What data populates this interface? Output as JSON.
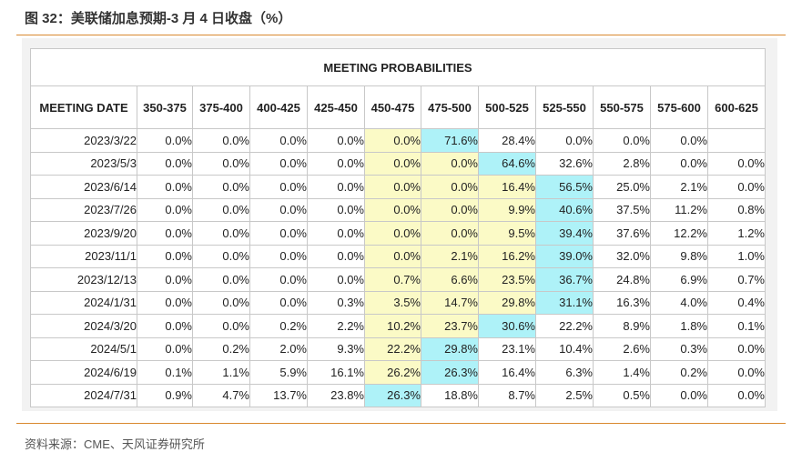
{
  "figure": {
    "title": "图 32：美联储加息预期-3 月 4 日收盘（%）",
    "source": "资料来源：CME、天风证券研究所"
  },
  "table": {
    "caption": "MEETING PROBABILITIES",
    "columns": [
      "MEETING DATE",
      "350-375",
      "375-400",
      "400-425",
      "425-450",
      "450-475",
      "475-500",
      "500-525",
      "525-550",
      "550-575",
      "575-600",
      "600-625"
    ],
    "rows": [
      {
        "date": "2023/3/22",
        "values": [
          "0.0%",
          "0.0%",
          "0.0%",
          "0.0%",
          "0.0%",
          "71.6%",
          "28.4%",
          "0.0%",
          "0.0%",
          "0.0%",
          ""
        ],
        "highlight": [
          null,
          null,
          null,
          null,
          "yellow",
          "cyan",
          null,
          null,
          null,
          null,
          null
        ]
      },
      {
        "date": "2023/5/3",
        "values": [
          "0.0%",
          "0.0%",
          "0.0%",
          "0.0%",
          "0.0%",
          "0.0%",
          "64.6%",
          "32.6%",
          "2.8%",
          "0.0%",
          "0.0%"
        ],
        "highlight": [
          null,
          null,
          null,
          null,
          "yellow",
          "yellow",
          "cyan",
          null,
          null,
          null,
          null
        ]
      },
      {
        "date": "2023/6/14",
        "values": [
          "0.0%",
          "0.0%",
          "0.0%",
          "0.0%",
          "0.0%",
          "0.0%",
          "16.4%",
          "56.5%",
          "25.0%",
          "2.1%",
          "0.0%"
        ],
        "highlight": [
          null,
          null,
          null,
          null,
          "yellow",
          "yellow",
          "yellow",
          "cyan",
          null,
          null,
          null
        ]
      },
      {
        "date": "2023/7/26",
        "values": [
          "0.0%",
          "0.0%",
          "0.0%",
          "0.0%",
          "0.0%",
          "0.0%",
          "9.9%",
          "40.6%",
          "37.5%",
          "11.2%",
          "0.8%"
        ],
        "highlight": [
          null,
          null,
          null,
          null,
          "yellow",
          "yellow",
          "yellow",
          "cyan",
          null,
          null,
          null
        ]
      },
      {
        "date": "2023/9/20",
        "values": [
          "0.0%",
          "0.0%",
          "0.0%",
          "0.0%",
          "0.0%",
          "0.0%",
          "9.5%",
          "39.4%",
          "37.6%",
          "12.2%",
          "1.2%"
        ],
        "highlight": [
          null,
          null,
          null,
          null,
          "yellow",
          "yellow",
          "yellow",
          "cyan",
          null,
          null,
          null
        ]
      },
      {
        "date": "2023/11/1",
        "values": [
          "0.0%",
          "0.0%",
          "0.0%",
          "0.0%",
          "0.0%",
          "2.1%",
          "16.2%",
          "39.0%",
          "32.0%",
          "9.8%",
          "1.0%"
        ],
        "highlight": [
          null,
          null,
          null,
          null,
          "yellow",
          "yellow",
          "yellow",
          "cyan",
          null,
          null,
          null
        ]
      },
      {
        "date": "2023/12/13",
        "values": [
          "0.0%",
          "0.0%",
          "0.0%",
          "0.0%",
          "0.7%",
          "6.6%",
          "23.5%",
          "36.7%",
          "24.8%",
          "6.9%",
          "0.7%"
        ],
        "highlight": [
          null,
          null,
          null,
          null,
          "yellow",
          "yellow",
          "yellow",
          "cyan",
          null,
          null,
          null
        ]
      },
      {
        "date": "2024/1/31",
        "values": [
          "0.0%",
          "0.0%",
          "0.0%",
          "0.3%",
          "3.5%",
          "14.7%",
          "29.8%",
          "31.1%",
          "16.3%",
          "4.0%",
          "0.4%"
        ],
        "highlight": [
          null,
          null,
          null,
          null,
          "yellow",
          "yellow",
          "yellow",
          "cyan",
          null,
          null,
          null
        ]
      },
      {
        "date": "2024/3/20",
        "values": [
          "0.0%",
          "0.0%",
          "0.2%",
          "2.2%",
          "10.2%",
          "23.7%",
          "30.6%",
          "22.2%",
          "8.9%",
          "1.8%",
          "0.1%"
        ],
        "highlight": [
          null,
          null,
          null,
          null,
          "yellow",
          "yellow",
          "cyan",
          null,
          null,
          null,
          null
        ]
      },
      {
        "date": "2024/5/1",
        "values": [
          "0.0%",
          "0.2%",
          "2.0%",
          "9.3%",
          "22.2%",
          "29.8%",
          "23.1%",
          "10.4%",
          "2.6%",
          "0.3%",
          "0.0%"
        ],
        "highlight": [
          null,
          null,
          null,
          null,
          "yellow",
          "cyan",
          null,
          null,
          null,
          null,
          null
        ]
      },
      {
        "date": "2024/6/19",
        "values": [
          "0.1%",
          "1.1%",
          "5.9%",
          "16.1%",
          "26.2%",
          "26.3%",
          "16.4%",
          "6.3%",
          "1.4%",
          "0.2%",
          "0.0%"
        ],
        "highlight": [
          null,
          null,
          null,
          null,
          "yellow",
          "cyan",
          null,
          null,
          null,
          null,
          null
        ]
      },
      {
        "date": "2024/7/31",
        "values": [
          "0.9%",
          "4.7%",
          "13.7%",
          "23.8%",
          "26.3%",
          "18.8%",
          "8.7%",
          "2.5%",
          "0.5%",
          "0.0%",
          "0.0%"
        ],
        "highlight": [
          null,
          null,
          null,
          null,
          "cyan",
          null,
          null,
          null,
          null,
          null,
          null
        ]
      }
    ]
  },
  "colors": {
    "accent_rule": "#d9892f",
    "highlight_yellow": "#fbfac6",
    "highlight_cyan": "#aef2f8"
  }
}
